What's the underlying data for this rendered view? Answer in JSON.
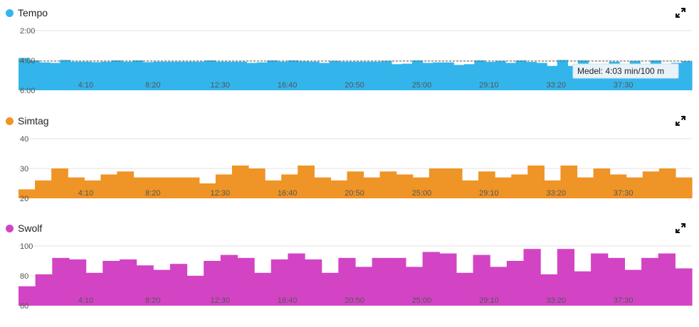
{
  "charts": [
    {
      "id": "tempo",
      "title": "Tempo",
      "color": "#33b5eb",
      "expand_icon": "expand-arrows-icon",
      "y_ticks": [
        "2:00",
        "4:00",
        "6:00"
      ],
      "x_ticks": [
        "4:10",
        "8:20",
        "12:30",
        "16:40",
        "20:50",
        "25:00",
        "29:10",
        "33:20",
        "37:30"
      ],
      "tooltip": "Medel: 4:03 min/100 m"
    },
    {
      "id": "simtag",
      "title": "Simtag",
      "color": "#ef9426",
      "expand_icon": "expand-arrows-icon",
      "y_ticks": [
        "40",
        "30",
        "20"
      ],
      "x_ticks": [
        "4:10",
        "8:20",
        "12:30",
        "16:40",
        "20:50",
        "25:00",
        "29:10",
        "33:20",
        "37:30"
      ]
    },
    {
      "id": "swolf",
      "title": "Swolf",
      "color": "#d244c4",
      "expand_icon": "expand-arrows-icon",
      "y_ticks": [
        "100",
        "80",
        "60"
      ],
      "x_ticks": [
        "4:10",
        "8:20",
        "12:30",
        "16:40",
        "20:50",
        "25:00",
        "29:10",
        "33:20",
        "37:30"
      ]
    }
  ],
  "chart_data": [
    {
      "type": "bar",
      "title": "Tempo",
      "ylabel": "min/100 m",
      "y_axis": "seconds per 100 m, inverted (2:00 top, 6:00 bottom)",
      "ylim": [
        120,
        360
      ],
      "average_line": 243,
      "average_label": "Medel: 4:03 min/100 m",
      "x_range_seconds": [
        0,
        2505
      ],
      "x_tick_seconds": [
        250,
        500,
        750,
        1000,
        1250,
        1500,
        1750,
        2000,
        2250
      ],
      "values": [
        230,
        240,
        248,
        250,
        238,
        245,
        245,
        247,
        245,
        240,
        245,
        240,
        247,
        245,
        245,
        245,
        245,
        245,
        240,
        245,
        245,
        245,
        250,
        248,
        240,
        245,
        240,
        244,
        245,
        250,
        242,
        245,
        245,
        245,
        245,
        242,
        255,
        253,
        240,
        250,
        248,
        248,
        258,
        255,
        240,
        246,
        242,
        250,
        240,
        246,
        250,
        262,
        238,
        262,
        240,
        257,
        257,
        245,
        257,
        242,
        255,
        240,
        256,
        250,
        243
      ],
      "grid": true
    },
    {
      "type": "bar",
      "title": "Simtag",
      "ylim": [
        20,
        40
      ],
      "x_range_seconds": [
        0,
        2505
      ],
      "x_tick_seconds": [
        250,
        500,
        750,
        1000,
        1250,
        1500,
        1750,
        2000,
        2250
      ],
      "values": [
        23,
        26,
        30,
        27,
        26,
        28,
        29,
        27,
        27,
        27,
        27,
        25,
        28,
        31,
        30,
        26,
        28,
        31,
        27,
        26,
        29,
        27,
        29,
        28,
        27,
        30,
        30,
        26,
        29,
        27,
        28,
        31,
        26,
        31,
        27,
        30,
        28,
        27,
        29,
        30,
        27
      ],
      "grid": true
    },
    {
      "type": "bar",
      "title": "Swolf",
      "ylim": [
        60,
        100
      ],
      "x_range_seconds": [
        0,
        2505
      ],
      "x_tick_seconds": [
        250,
        500,
        750,
        1000,
        1250,
        1500,
        1750,
        2000,
        2250
      ],
      "values": [
        73,
        81,
        92,
        91,
        82,
        90,
        91,
        87,
        84,
        88,
        80,
        90,
        94,
        92,
        82,
        91,
        95,
        91,
        82,
        92,
        86,
        92,
        92,
        86,
        96,
        95,
        82,
        94,
        86,
        90,
        98,
        81,
        98,
        83,
        95,
        92,
        84,
        92,
        95,
        85
      ],
      "grid": true
    }
  ]
}
